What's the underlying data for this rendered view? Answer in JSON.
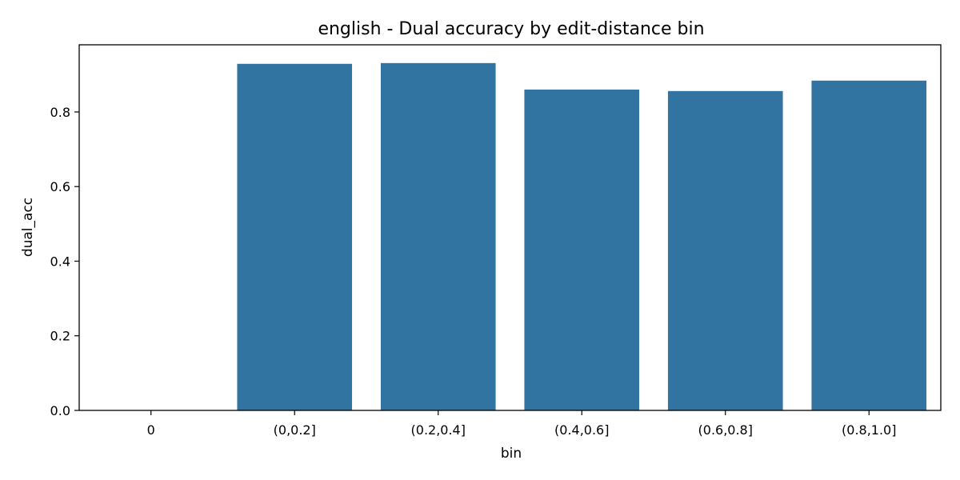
{
  "chart_data": {
    "type": "bar",
    "title": "english - Dual accuracy by edit-distance bin",
    "xlabel": "bin",
    "ylabel": "dual_acc",
    "categories": [
      "0",
      "(0,0.2]",
      "(0.2,0.4]",
      "(0.4,0.6]",
      "(0.6,0.8]",
      "(0.8,1.0]"
    ],
    "values": [
      0,
      0.929,
      0.931,
      0.86,
      0.856,
      0.884
    ],
    "ylim": [
      0,
      0.98
    ],
    "yticks": [
      0.0,
      0.2,
      0.4,
      0.6,
      0.8
    ],
    "ytick_labels": [
      "0.0",
      "0.2",
      "0.4",
      "0.6",
      "0.8"
    ],
    "grid": false,
    "bar_color": "#3274a1"
  }
}
